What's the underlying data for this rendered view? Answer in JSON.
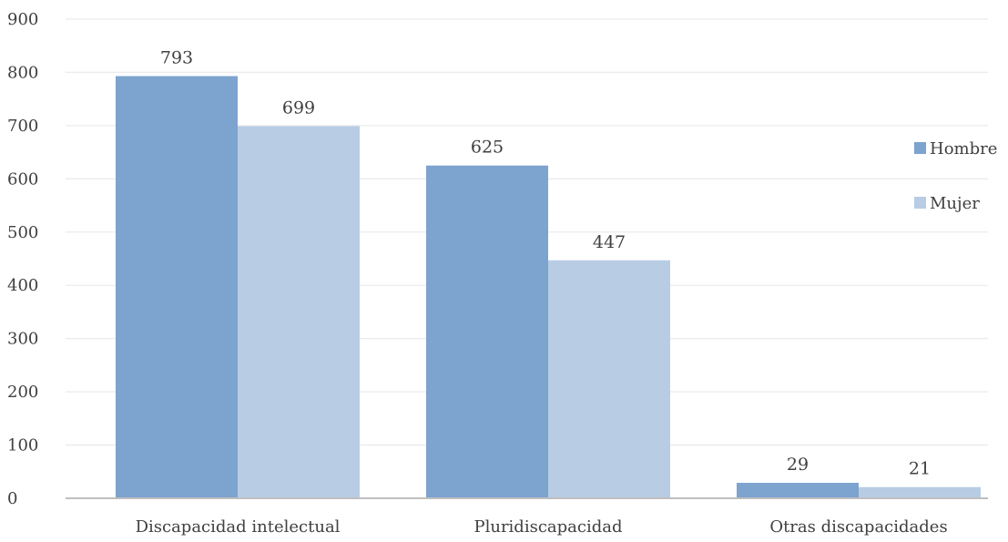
{
  "chart_data": {
    "type": "bar",
    "title": "",
    "xlabel": "",
    "ylabel": "",
    "categories": [
      "Discapacidad intelectual",
      "Pluridiscapacidad",
      "Otras discapacidades"
    ],
    "series": [
      {
        "name": "Hombre",
        "values": [
          793,
          625,
          29
        ],
        "color": "#7da3cf"
      },
      {
        "name": "Mujer",
        "values": [
          699,
          447,
          21
        ],
        "color": "#b8cce4"
      }
    ],
    "ylim": [
      0,
      900
    ],
    "yticks": [
      0,
      100,
      200,
      300,
      400,
      500,
      600,
      700,
      800,
      900
    ],
    "grid": true,
    "legend_position": "right",
    "data_labels": true,
    "colors": {
      "gridline": "#ebebeb",
      "axis": "#bfbfbf",
      "text": "#404040"
    }
  }
}
